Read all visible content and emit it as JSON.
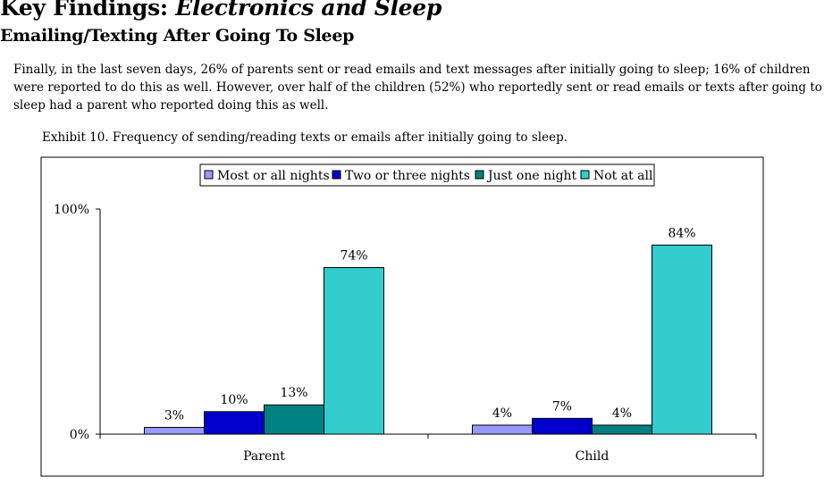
{
  "heading": {
    "prefix": "Key Findings: ",
    "italic": "Electronics and Sleep",
    "subheading": "Emailing/Texting After Going To Sleep"
  },
  "paragraph": "Finally, in the last seven days, 26% of parents sent or read emails and text messages after initially going to sleep; 16% of children were reported to do this as well.  However, over half of the children (52%) who reportedly sent or read emails or texts after going to sleep had a parent who reported doing this as well.",
  "caption": "Exhibit 10.  Frequency of sending/reading texts or emails after initially going to sleep.",
  "chart_data": {
    "type": "bar",
    "categories": [
      "Parent",
      "Child"
    ],
    "series": [
      {
        "name": "Most or all nights",
        "values": [
          3,
          4
        ],
        "labels": [
          "3%",
          "4%"
        ],
        "color": "#9999ff"
      },
      {
        "name": "Two or three nights",
        "values": [
          10,
          7
        ],
        "labels": [
          "10%",
          "7%"
        ],
        "color": "#0000cc"
      },
      {
        "name": "Just one night",
        "values": [
          13,
          4
        ],
        "labels": [
          "13%",
          "4%"
        ],
        "color": "#008080"
      },
      {
        "name": "Not at all",
        "values": [
          74,
          84
        ],
        "labels": [
          "74%",
          "84%"
        ],
        "color": "#33cccc"
      }
    ],
    "y_ticks": [
      0,
      100
    ],
    "y_tick_labels": [
      "0%",
      "100%"
    ],
    "ylim": [
      0,
      100
    ],
    "legend_position": "top",
    "grid": false
  }
}
